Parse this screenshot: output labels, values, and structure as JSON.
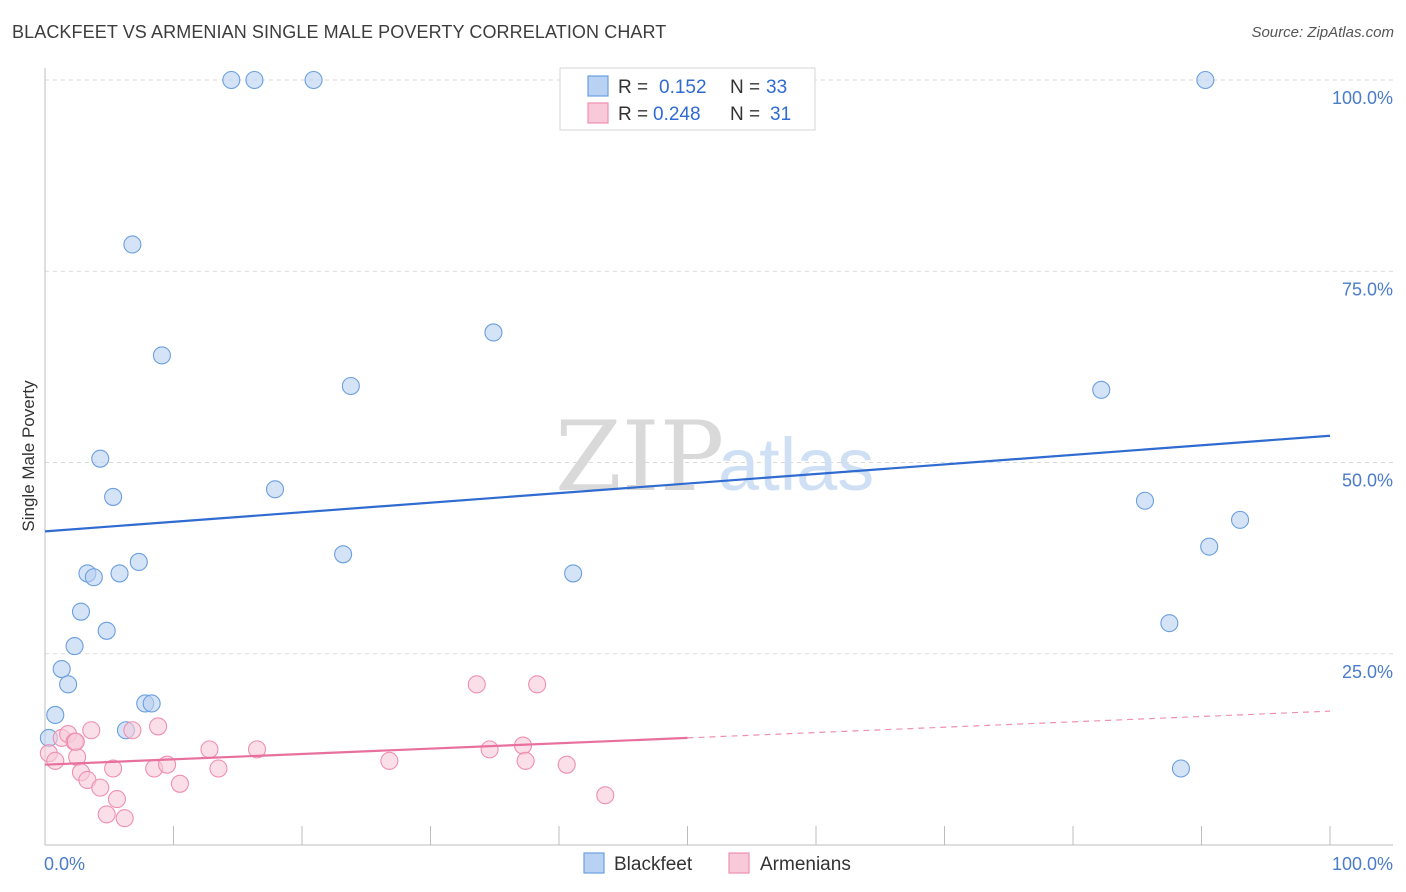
{
  "title": "BLACKFEET VS ARMENIAN SINGLE MALE POVERTY CORRELATION CHART",
  "source": "Source: ZipAtlas.com",
  "watermark": {
    "zip": "ZIP",
    "atlas": "atlas"
  },
  "legend": {
    "rows": [
      {
        "r_label": "R =",
        "r_value": "0.152",
        "n_label": "N =",
        "n_value": "33",
        "color": "#6a9fe0"
      },
      {
        "r_label": "R =",
        "r_value": "0.248",
        "n_label": "N =",
        "n_value": "31",
        "color": "#ef8fb1"
      }
    ]
  },
  "bottom_legend": [
    "Blackfeet",
    "Armenians"
  ],
  "chart_data": {
    "type": "scatter",
    "ylabel": "Single Male Poverty",
    "xlabel": "",
    "x_tick_labels": [
      "0.0%",
      "100.0%"
    ],
    "y_tick_labels": [
      "100.0%",
      "75.0%",
      "50.0%",
      "25.0%"
    ],
    "y_ticks": [
      100,
      75,
      50,
      25
    ],
    "xlim": [
      0,
      100
    ],
    "ylim": [
      0,
      100
    ],
    "grid": "horizontal-dashed",
    "series": [
      {
        "name": "Blackfeet",
        "color": "#6a9fe0",
        "fill": "#b9d1f2",
        "points": [
          [
            0.3,
            14
          ],
          [
            0.8,
            17
          ],
          [
            1.3,
            23
          ],
          [
            1.8,
            21
          ],
          [
            2.3,
            26
          ],
          [
            2.8,
            30.5
          ],
          [
            3.3,
            35.5
          ],
          [
            3.8,
            35
          ],
          [
            4.3,
            50.5
          ],
          [
            4.8,
            28
          ],
          [
            5.3,
            45.5
          ],
          [
            5.8,
            35.5
          ],
          [
            6.3,
            15
          ],
          [
            6.8,
            78.5
          ],
          [
            7.3,
            37
          ],
          [
            7.8,
            18.5
          ],
          [
            8.3,
            18.5
          ],
          [
            9.1,
            64
          ],
          [
            14.5,
            100
          ],
          [
            16.3,
            100
          ],
          [
            20.9,
            100
          ],
          [
            17.9,
            46.5
          ],
          [
            23.2,
            38
          ],
          [
            23.8,
            60
          ],
          [
            34.9,
            67
          ],
          [
            41.1,
            35.5
          ],
          [
            82.2,
            59.5
          ],
          [
            85.6,
            45
          ],
          [
            87.5,
            29
          ],
          [
            88.4,
            10
          ],
          [
            90.6,
            39
          ],
          [
            93,
            42.5
          ],
          [
            90.3,
            100
          ]
        ],
        "trend": {
          "x0": 0,
          "y0": 41,
          "x1": 100,
          "y1": 53.5
        }
      },
      {
        "name": "Armenians",
        "color": "#ef8fb1",
        "fill": "#f8c9d9",
        "points": [
          [
            0.3,
            12
          ],
          [
            0.8,
            11
          ],
          [
            1.3,
            14
          ],
          [
            1.8,
            14.5
          ],
          [
            2.3,
            13.5
          ],
          [
            2.5,
            11.5
          ],
          [
            2.8,
            9.5
          ],
          [
            3.3,
            8.5
          ],
          [
            3.6,
            15
          ],
          [
            4.3,
            7.5
          ],
          [
            4.8,
            4
          ],
          [
            5.3,
            10
          ],
          [
            5.6,
            6
          ],
          [
            6.2,
            3.5
          ],
          [
            6.8,
            15
          ],
          [
            8.5,
            10
          ],
          [
            8.8,
            15.5
          ],
          [
            9.5,
            10.5
          ],
          [
            10.5,
            8
          ],
          [
            12.8,
            12.5
          ],
          [
            13.5,
            10
          ],
          [
            16.5,
            12.5
          ],
          [
            26.8,
            11
          ],
          [
            33.6,
            21
          ],
          [
            34.6,
            12.5
          ],
          [
            37.2,
            13
          ],
          [
            37.4,
            11
          ],
          [
            38.3,
            21
          ],
          [
            40.6,
            10.5
          ],
          [
            43.6,
            6.5
          ],
          [
            2.4,
            13.5
          ]
        ],
        "trend": {
          "x0": 0,
          "y0": 10.5,
          "x1": 50,
          "y1": 14
        },
        "trend_extension": {
          "x0": 50,
          "y0": 14,
          "x1": 100,
          "y1": 17.5
        }
      }
    ]
  }
}
